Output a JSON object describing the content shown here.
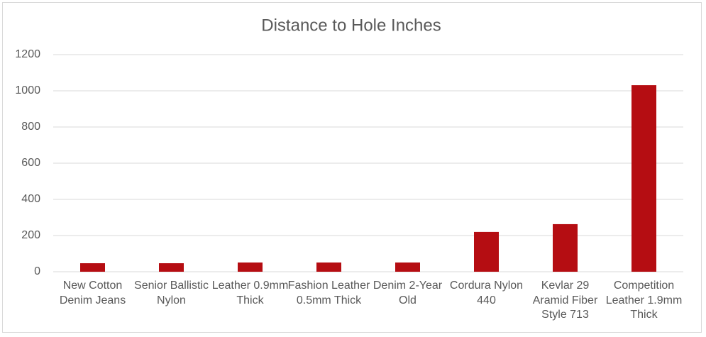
{
  "chart_data": {
    "type": "bar",
    "title": "Distance to Hole Inches",
    "categories": [
      "New Cotton Denim Jeans",
      "Senior Ballistic Nylon",
      "Leather 0.9mm Thick",
      "Fashion Leather 0.5mm Thick",
      "Denim 2-Year Old",
      "Cordura Nylon 440",
      "Kevlar 29 Aramid Fiber Style 713",
      "Competition Leather 1.9mm Thick"
    ],
    "values": [
      47,
      47,
      51,
      51,
      51,
      220,
      263,
      1031
    ],
    "color": "#b50d12",
    "ylim": [
      0,
      1200
    ],
    "yticks": [
      0,
      200,
      400,
      600,
      800,
      1000,
      1200
    ],
    "grid": true
  }
}
